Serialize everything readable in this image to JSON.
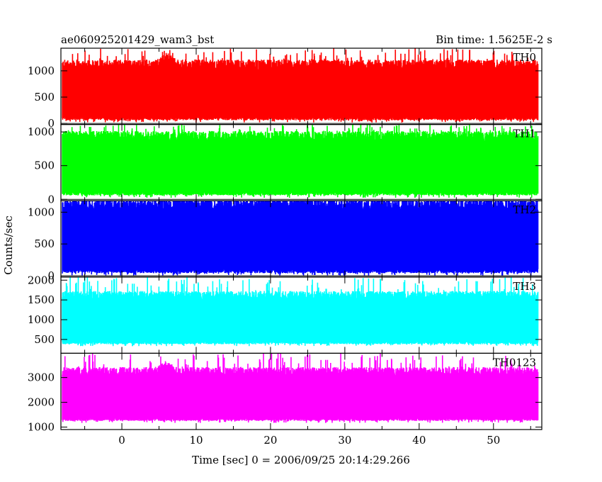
{
  "header": {
    "title": "ae060925201429_wam3_bst",
    "bin_time": "Bin time: 1.5625E-2 s"
  },
  "chart_data": {
    "type": "line",
    "title": "ae060925201429_wam3_bst",
    "subtitle": "Bin time: 1.5625E-2 s",
    "xlabel": "Time [sec] 0 = 2006/09/25 20:14:29.266",
    "ylabel": "Counts/sec",
    "xlim": [
      -8.2,
      56.5
    ],
    "x_data_range": [
      -8.0,
      56.0
    ],
    "x_ticks": [
      0,
      10,
      20,
      30,
      40,
      50
    ],
    "x_tick_labels": [
      "0",
      "10",
      "20",
      "30",
      "40",
      "50"
    ],
    "grid": false,
    "legend": "none",
    "series": [
      {
        "name": "TH0",
        "color": "#ff0000",
        "ylim": [
          -20,
          1430
        ],
        "y_ticks": [
          0,
          500,
          1000
        ],
        "y_tick_labels": [
          "0",
          "500",
          "1000"
        ],
        "band_low": 60,
        "band_high": 1150,
        "peak": 1430,
        "burst_at": 6.0
      },
      {
        "name": "TH1",
        "color": "#00ff00",
        "ylim": [
          -20,
          1110
        ],
        "y_ticks": [
          0,
          500,
          1000
        ],
        "y_tick_labels": [
          "0",
          "500",
          "1000"
        ],
        "band_low": 60,
        "band_high": 960,
        "peak": 1110,
        "burst_at": null
      },
      {
        "name": "TH2",
        "color": "#0000ff",
        "ylim": [
          -20,
          1180
        ],
        "y_ticks": [
          0,
          500,
          1000
        ],
        "y_tick_labels": [
          "0",
          "500",
          "1000"
        ],
        "band_low": 40,
        "band_high": 1150,
        "peak": 1180,
        "burst_at": null
      },
      {
        "name": "TH3",
        "color": "#00ffff",
        "ylim": [
          150,
          2080
        ],
        "y_ticks": [
          500,
          1000,
          1500,
          2000
        ],
        "y_tick_labels": [
          "500",
          "1000",
          "1500",
          "2000"
        ],
        "band_low": 380,
        "band_high": 1650,
        "peak": 2080,
        "burst_at": null
      },
      {
        "name": "TH0123",
        "color": "#ff00ff",
        "ylim": [
          900,
          3980
        ],
        "y_ticks": [
          1000,
          2000,
          3000
        ],
        "y_tick_labels": [
          "1000",
          "2000",
          "3000"
        ],
        "band_low": 1250,
        "band_high": 3300,
        "peak": 3980,
        "burst_at": 6.0
      }
    ]
  }
}
